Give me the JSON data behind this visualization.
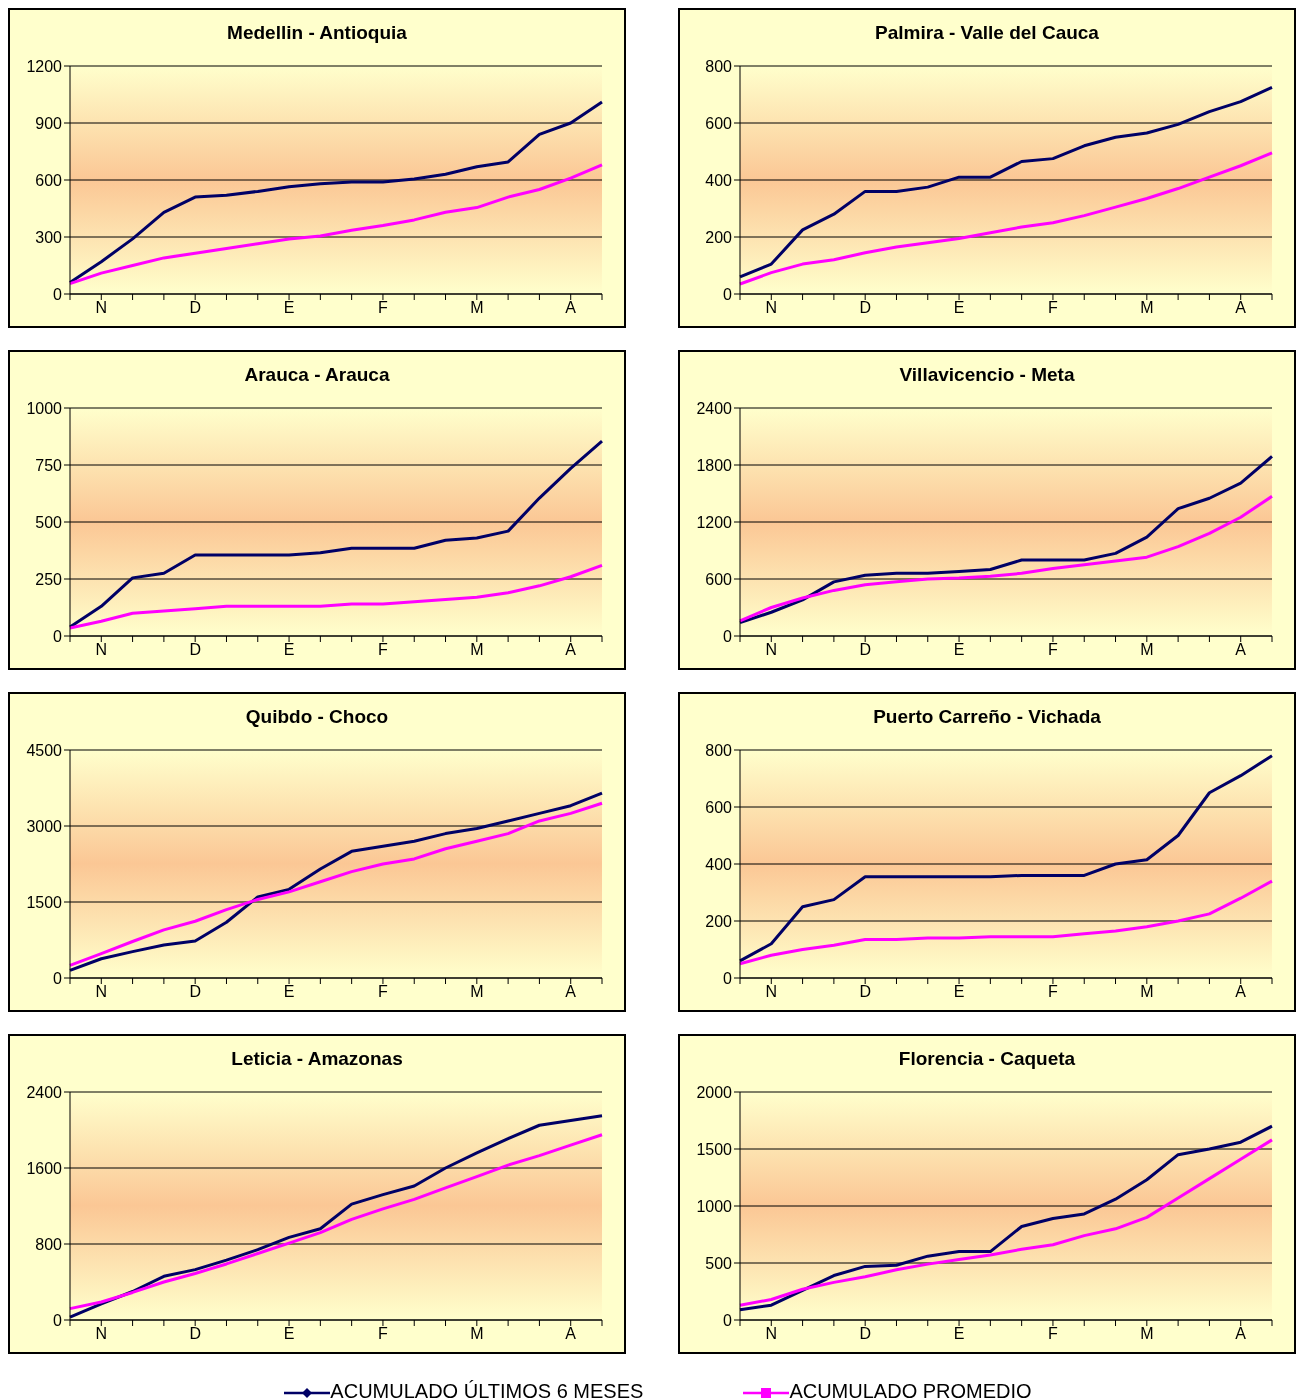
{
  "chart_data": [
    {
      "type": "line",
      "title": "Medellin - Antioquia",
      "categories": [
        null,
        "N",
        null,
        null,
        "D",
        null,
        null,
        "E",
        null,
        null,
        "F",
        null,
        null,
        "M",
        null,
        null,
        "A",
        null
      ],
      "ylim": [
        0,
        1200
      ],
      "yticks": [
        0,
        300,
        600,
        900,
        1200
      ],
      "grid": "y",
      "legend": "bottom",
      "series": [
        {
          "name": "ACUMULADO ÚLTIMOS 6 MESES",
          "color": "#000066",
          "values": [
            60,
            170,
            290,
            430,
            510,
            520,
            540,
            565,
            580,
            590,
            590,
            605,
            630,
            670,
            695,
            840,
            900,
            1010
          ]
        },
        {
          "name": "ACUMULADO PROMEDIO",
          "color": "#ff00ff",
          "values": [
            55,
            110,
            150,
            190,
            215,
            240,
            265,
            290,
            305,
            335,
            360,
            390,
            430,
            455,
            510,
            550,
            610,
            680
          ]
        }
      ]
    },
    {
      "type": "line",
      "title": "Palmira - Valle del Cauca",
      "categories": [
        null,
        "N",
        null,
        null,
        "D",
        null,
        null,
        "E",
        null,
        null,
        "F",
        null,
        null,
        "M",
        null,
        null,
        "A",
        null
      ],
      "ylim": [
        0,
        800
      ],
      "yticks": [
        0,
        200,
        400,
        600,
        800
      ],
      "grid": "y",
      "series": [
        {
          "color": "#000066",
          "values": [
            60,
            105,
            225,
            280,
            360,
            360,
            375,
            410,
            410,
            465,
            475,
            520,
            550,
            565,
            595,
            640,
            675,
            725
          ]
        },
        {
          "color": "#ff00ff",
          "values": [
            35,
            75,
            105,
            120,
            145,
            165,
            180,
            195,
            215,
            235,
            250,
            275,
            305,
            335,
            370,
            410,
            450,
            495
          ]
        }
      ]
    },
    {
      "type": "line",
      "title": "Arauca - Arauca",
      "categories": [
        null,
        "N",
        null,
        null,
        "D",
        null,
        null,
        "E",
        null,
        null,
        "F",
        null,
        null,
        "M",
        null,
        null,
        "A",
        null
      ],
      "ylim": [
        0,
        1000
      ],
      "yticks": [
        0,
        250,
        500,
        750,
        1000
      ],
      "grid": "y",
      "series": [
        {
          "color": "#000066",
          "values": [
            40,
            130,
            255,
            275,
            355,
            355,
            355,
            355,
            365,
            385,
            385,
            385,
            420,
            430,
            460,
            605,
            735,
            855
          ]
        },
        {
          "color": "#ff00ff",
          "values": [
            35,
            65,
            100,
            110,
            120,
            130,
            130,
            130,
            130,
            140,
            140,
            150,
            160,
            170,
            190,
            220,
            260,
            310
          ]
        }
      ]
    },
    {
      "type": "line",
      "title": "Villavicencio - Meta",
      "categories": [
        null,
        "N",
        null,
        null,
        "D",
        null,
        null,
        "E",
        null,
        null,
        "F",
        null,
        null,
        "M",
        null,
        null,
        "A",
        null
      ],
      "ylim": [
        0,
        2400
      ],
      "yticks": [
        0,
        600,
        1200,
        1800,
        2400
      ],
      "grid": "y",
      "series": [
        {
          "color": "#000066",
          "values": [
            140,
            250,
            380,
            570,
            640,
            660,
            660,
            680,
            700,
            800,
            800,
            800,
            870,
            1040,
            1340,
            1450,
            1610,
            1890
          ]
        },
        {
          "color": "#ff00ff",
          "values": [
            160,
            300,
            400,
            480,
            540,
            570,
            600,
            610,
            630,
            660,
            710,
            750,
            790,
            830,
            940,
            1080,
            1250,
            1470
          ]
        }
      ]
    },
    {
      "type": "line",
      "title": "Quibdo - Choco",
      "categories": [
        null,
        "N",
        null,
        null,
        "D",
        null,
        null,
        "E",
        null,
        null,
        "F",
        null,
        null,
        "M",
        null,
        null,
        "A",
        null
      ],
      "ylim": [
        0,
        4500
      ],
      "yticks": [
        0,
        1500,
        3000,
        4500
      ],
      "grid": "y",
      "series": [
        {
          "color": "#000066",
          "values": [
            150,
            380,
            520,
            650,
            730,
            1100,
            1600,
            1750,
            2150,
            2500,
            2600,
            2700,
            2850,
            2950,
            3100,
            3250,
            3400,
            3650
          ]
        },
        {
          "color": "#ff00ff",
          "values": [
            250,
            480,
            720,
            950,
            1120,
            1350,
            1550,
            1700,
            1900,
            2100,
            2250,
            2350,
            2550,
            2700,
            2850,
            3100,
            3250,
            3450
          ]
        }
      ]
    },
    {
      "type": "line",
      "title": "Puerto Carreño - Vichada",
      "categories": [
        null,
        "N",
        null,
        null,
        "D",
        null,
        null,
        "E",
        null,
        null,
        "F",
        null,
        null,
        "M",
        null,
        null,
        "A",
        null
      ],
      "ylim": [
        0,
        800
      ],
      "yticks": [
        0,
        200,
        400,
        600,
        800
      ],
      "grid": "y",
      "series": [
        {
          "color": "#000066",
          "values": [
            60,
            120,
            250,
            275,
            355,
            355,
            355,
            355,
            355,
            360,
            360,
            360,
            400,
            415,
            500,
            650,
            710,
            780
          ]
        },
        {
          "color": "#ff00ff",
          "values": [
            50,
            80,
            100,
            115,
            135,
            135,
            140,
            140,
            145,
            145,
            145,
            155,
            165,
            180,
            200,
            225,
            280,
            340
          ]
        }
      ]
    },
    {
      "type": "line",
      "title": "Leticia - Amazonas",
      "categories": [
        null,
        "N",
        null,
        null,
        "D",
        null,
        null,
        "E",
        null,
        null,
        "F",
        null,
        null,
        "M",
        null,
        null,
        "A",
        null
      ],
      "ylim": [
        0,
        2400
      ],
      "yticks": [
        0,
        800,
        1600,
        2400
      ],
      "grid": "y",
      "series": [
        {
          "color": "#000066",
          "values": [
            30,
            170,
            300,
            460,
            530,
            630,
            740,
            870,
            960,
            1220,
            1320,
            1410,
            1600,
            1760,
            1910,
            2050,
            2100,
            2150
          ]
        },
        {
          "color": "#ff00ff",
          "values": [
            120,
            190,
            290,
            400,
            490,
            590,
            700,
            810,
            920,
            1060,
            1170,
            1270,
            1390,
            1510,
            1630,
            1730,
            1840,
            1950
          ]
        }
      ]
    },
    {
      "type": "line",
      "title": "Florencia - Caqueta",
      "categories": [
        null,
        "N",
        null,
        null,
        "D",
        null,
        null,
        "E",
        null,
        null,
        "F",
        null,
        null,
        "M",
        null,
        null,
        "A",
        null
      ],
      "ylim": [
        0,
        2000
      ],
      "yticks": [
        0,
        500,
        1000,
        1500,
        2000
      ],
      "grid": "y",
      "series": [
        {
          "color": "#000066",
          "values": [
            90,
            130,
            260,
            390,
            470,
            480,
            560,
            600,
            600,
            820,
            890,
            930,
            1060,
            1230,
            1450,
            1500,
            1560,
            1700
          ]
        },
        {
          "color": "#ff00ff",
          "values": [
            130,
            180,
            270,
            330,
            380,
            440,
            490,
            530,
            570,
            620,
            660,
            740,
            800,
            900,
            1070,
            1240,
            1410,
            1580
          ]
        }
      ]
    }
  ]
}
